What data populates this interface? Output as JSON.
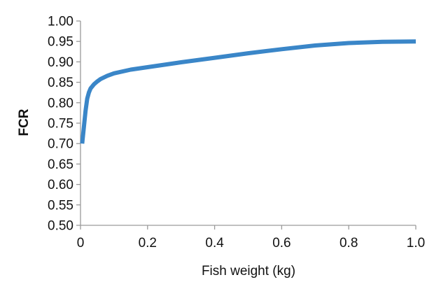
{
  "chart_data": {
    "type": "line",
    "xlabel": "Fish weight (kg)",
    "ylabel": "FCR",
    "xlim": [
      0,
      1.0
    ],
    "ylim": [
      0.5,
      1.0
    ],
    "x_ticks": [
      "0",
      "0.2",
      "0.4",
      "0.6",
      "0.8",
      "1.0"
    ],
    "y_ticks": [
      "0.50",
      "0.55",
      "0.60",
      "0.65",
      "0.70",
      "0.75",
      "0.80",
      "0.85",
      "0.90",
      "0.95",
      "1.00"
    ],
    "grid": false,
    "legend": "none",
    "series": [
      {
        "color": "#3a86c8",
        "x": [
          0.005,
          0.01,
          0.015,
          0.02,
          0.025,
          0.03,
          0.04,
          0.05,
          0.06,
          0.08,
          0.1,
          0.15,
          0.2,
          0.3,
          0.4,
          0.5,
          0.6,
          0.7,
          0.8,
          0.9,
          1.0
        ],
        "y": [
          0.7,
          0.74,
          0.78,
          0.81,
          0.825,
          0.835,
          0.845,
          0.852,
          0.858,
          0.866,
          0.872,
          0.881,
          0.887,
          0.899,
          0.91,
          0.921,
          0.931,
          0.94,
          0.946,
          0.949,
          0.95
        ]
      }
    ]
  }
}
